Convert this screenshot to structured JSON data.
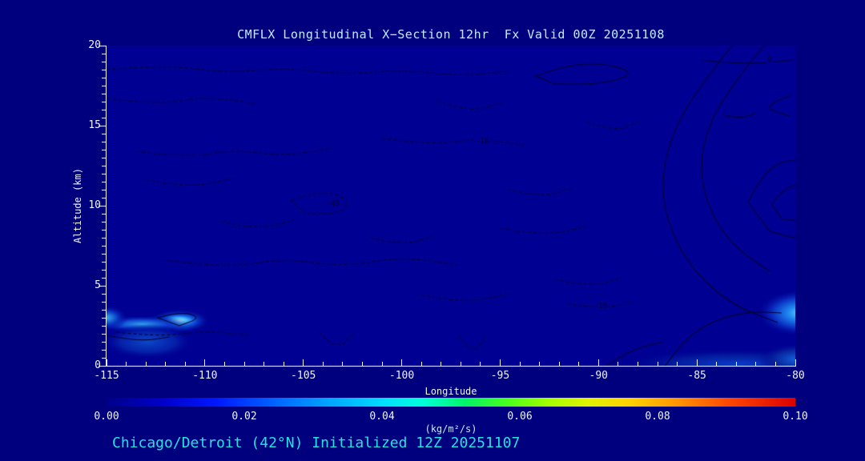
{
  "page": {
    "title": "CMFLX Longitudinal X−Section 12hr  Fx Valid 00Z 20251108",
    "footer": "Chicago/Detroit (42°N) Initialized 12Z 20251107"
  },
  "colors": {
    "page_bg": "#00007e",
    "plot_bg": "#000092",
    "axis": "#f2f6ff",
    "title_text": "#bdeeff",
    "tick_text": "#eef4ff",
    "footer_text": "#25e2e2",
    "contour": "#000033"
  },
  "chart_data": {
    "type": "heatmap",
    "title": "CMFLX Longitudinal X−Section 12hr  Fx Valid 00Z 20251108",
    "xlabel": "Longitude",
    "ylabel": "Altitude (km)",
    "units_label": "(kg/m²/s)",
    "xlim": [
      -115,
      -80
    ],
    "ylim": [
      0,
      20
    ],
    "x_minor_step": 1,
    "y_minor_step": 0.5,
    "x_ticks": [
      {
        "v": -115,
        "label": "-115"
      },
      {
        "v": -110,
        "label": "-110"
      },
      {
        "v": -105,
        "label": "-105"
      },
      {
        "v": -100,
        "label": "-100"
      },
      {
        "v": -95,
        "label": "-95"
      },
      {
        "v": -90,
        "label": "-90"
      },
      {
        "v": -85,
        "label": "-85"
      },
      {
        "v": -80,
        "label": "-80"
      }
    ],
    "y_ticks": [
      {
        "v": 0,
        "label": "0"
      },
      {
        "v": 5,
        "label": "5"
      },
      {
        "v": 10,
        "label": "10"
      },
      {
        "v": 15,
        "label": "15"
      },
      {
        "v": 20,
        "label": "20"
      }
    ],
    "colorbar": {
      "min": 0,
      "max": 0.1,
      "ticks": [
        {
          "v": 0.0,
          "label": "0.00"
        },
        {
          "v": 0.02,
          "label": "0.02"
        },
        {
          "v": 0.04,
          "label": "0.04"
        },
        {
          "v": 0.06,
          "label": "0.06"
        },
        {
          "v": 0.08,
          "label": "0.08"
        },
        {
          "v": 0.1,
          "label": "0.10"
        }
      ],
      "stops": [
        {
          "p": 0.0,
          "c": "#00008b"
        },
        {
          "p": 0.08,
          "c": "#0000c8"
        },
        {
          "p": 0.16,
          "c": "#0018ff"
        },
        {
          "p": 0.24,
          "c": "#0060ff"
        },
        {
          "p": 0.32,
          "c": "#00a4ff"
        },
        {
          "p": 0.4,
          "c": "#00ddff"
        },
        {
          "p": 0.46,
          "c": "#00ffd8"
        },
        {
          "p": 0.52,
          "c": "#00f468"
        },
        {
          "p": 0.58,
          "c": "#46ff1e"
        },
        {
          "p": 0.64,
          "c": "#a2ff00"
        },
        {
          "p": 0.7,
          "c": "#e2f200"
        },
        {
          "p": 0.76,
          "c": "#ffd200"
        },
        {
          "p": 0.83,
          "c": "#ff9400"
        },
        {
          "p": 0.9,
          "c": "#ff4a00"
        },
        {
          "p": 1.0,
          "c": "#de0000"
        }
      ]
    },
    "plumes": [
      {
        "x": -111.3,
        "y": 2.8,
        "rx": 1.6,
        "ry": 0.75,
        "stops": [
          [
            0,
            "#d8fbff"
          ],
          [
            0.18,
            "#5fdcff"
          ],
          [
            0.45,
            "#1160e8"
          ],
          [
            1,
            "rgba(0,0,146,0)"
          ]
        ]
      },
      {
        "x": -113.2,
        "y": 2.6,
        "rx": 2.6,
        "ry": 0.55,
        "stops": [
          [
            0,
            "#2f9fe8"
          ],
          [
            0.5,
            "#0c3ed0"
          ],
          [
            1,
            "rgba(0,0,146,0)"
          ]
        ]
      },
      {
        "x": -115.0,
        "y": 3.0,
        "rx": 1.1,
        "ry": 0.8,
        "stops": [
          [
            0,
            "#37b4ec"
          ],
          [
            0.5,
            "#0a3cc8"
          ],
          [
            1,
            "rgba(0,0,146,0)"
          ]
        ]
      },
      {
        "x": -112.9,
        "y": 1.5,
        "rx": 2.4,
        "ry": 1.1,
        "stops": [
          [
            0,
            "#0d47c8"
          ],
          [
            0.6,
            "#051fa8"
          ],
          [
            1,
            "rgba(0,0,146,0)"
          ]
        ]
      },
      {
        "x": -79.7,
        "y": 3.3,
        "rx": 2.3,
        "ry": 1.5,
        "stops": [
          [
            0,
            "#63d9ff"
          ],
          [
            0.3,
            "#1e86f0"
          ],
          [
            0.65,
            "#0a2cc0"
          ],
          [
            1,
            "rgba(0,0,146,0)"
          ]
        ]
      },
      {
        "x": -83.0,
        "y": 0.1,
        "rx": 6.0,
        "ry": 1.0,
        "stops": [
          [
            0,
            "#0b3cc8"
          ],
          [
            0.55,
            "#041b9e"
          ],
          [
            1,
            "rgba(0,0,146,0)"
          ]
        ]
      },
      {
        "x": -79.9,
        "y": 0.4,
        "rx": 2.0,
        "ry": 1.0,
        "stops": [
          [
            0,
            "#1464dc"
          ],
          [
            0.6,
            "#07239e"
          ],
          [
            1,
            "rgba(0,0,146,0)"
          ]
        ]
      }
    ],
    "contours": [
      {
        "dashed": true,
        "closed": false,
        "pts": [
          [
            -115,
            18.5
          ],
          [
            -112,
            18.8
          ],
          [
            -109,
            18.3
          ],
          [
            -106,
            18.6
          ],
          [
            -103,
            18.2
          ],
          [
            -100,
            18.5
          ],
          [
            -97,
            18.1
          ],
          [
            -94.5,
            18.4
          ]
        ]
      },
      {
        "dashed": true,
        "closed": false,
        "pts": [
          [
            -115,
            16.7
          ],
          [
            -112.5,
            16.3
          ],
          [
            -110,
            16.8
          ],
          [
            -107.5,
            16.4
          ]
        ]
      },
      {
        "dashed": true,
        "closed": false,
        "pts": [
          [
            -113.5,
            13.4
          ],
          [
            -111,
            13.0
          ],
          [
            -108.5,
            13.5
          ],
          [
            -106,
            13.1
          ],
          [
            -103.5,
            13.6
          ]
        ]
      },
      {
        "dashed": true,
        "closed": false,
        "pts": [
          [
            -101,
            14.2
          ],
          [
            -98.5,
            13.8
          ],
          [
            -96.2,
            14.2
          ],
          [
            -93.8,
            13.8
          ]
        ]
      },
      {
        "dashed": true,
        "closed": true,
        "pts": [
          [
            -105.6,
            10.3
          ],
          [
            -104.2,
            11.0
          ],
          [
            -102.6,
            10.4
          ],
          [
            -103.1,
            9.5
          ],
          [
            -104.9,
            9.5
          ]
        ]
      },
      {
        "dashed": true,
        "closed": false,
        "pts": [
          [
            -113,
            11.6
          ],
          [
            -110.8,
            11.1
          ],
          [
            -108.6,
            11.7
          ]
        ]
      },
      {
        "dashed": true,
        "closed": false,
        "pts": [
          [
            -112,
            6.6
          ],
          [
            -109,
            6.1
          ],
          [
            -106,
            6.7
          ],
          [
            -103,
            6.2
          ],
          [
            -100,
            6.8
          ],
          [
            -97.2,
            6.3
          ]
        ]
      },
      {
        "dashed": true,
        "closed": false,
        "pts": [
          [
            -95,
            8.6
          ],
          [
            -92.8,
            8.1
          ],
          [
            -90.6,
            8.7
          ]
        ]
      },
      {
        "dashed": true,
        "closed": false,
        "pts": [
          [
            -99,
            4.4
          ],
          [
            -96.8,
            3.9
          ],
          [
            -94.6,
            4.5
          ]
        ]
      },
      {
        "dashed": true,
        "closed": false,
        "pts": [
          [
            -114.5,
            2.1
          ],
          [
            -112.3,
            1.8
          ],
          [
            -110,
            2.2
          ],
          [
            -107.8,
            1.9
          ]
        ]
      },
      {
        "dashed": true,
        "closed": false,
        "pts": [
          [
            -104.2,
            2.1
          ],
          [
            -103.3,
            0.9
          ],
          [
            -102.4,
            2.1
          ]
        ]
      },
      {
        "dashed": true,
        "closed": false,
        "pts": [
          [
            -97.1,
            1.9
          ],
          [
            -96.4,
            0.6
          ],
          [
            -95.7,
            1.9
          ]
        ]
      },
      {
        "dashed": true,
        "closed": false,
        "pts": [
          [
            -92.2,
            5.4
          ],
          [
            -90.4,
            4.9
          ],
          [
            -88.8,
            5.5
          ]
        ]
      },
      {
        "dashed": true,
        "closed": false,
        "pts": [
          [
            -91.6,
            3.9
          ],
          [
            -89.9,
            3.5
          ],
          [
            -88.3,
            4.0
          ]
        ]
      },
      {
        "dashed": true,
        "closed": false,
        "pts": [
          [
            -98.2,
            16.5
          ],
          [
            -96.4,
            15.8
          ],
          [
            -94.8,
            16.5
          ]
        ]
      },
      {
        "dashed": true,
        "closed": false,
        "pts": [
          [
            -90.6,
            15.2
          ],
          [
            -89.1,
            14.6
          ],
          [
            -87.9,
            15.3
          ]
        ]
      },
      {
        "dashed": true,
        "closed": false,
        "pts": [
          [
            -109.2,
            9.0
          ],
          [
            -107.3,
            8.5
          ],
          [
            -105.5,
            9.1
          ]
        ]
      },
      {
        "dashed": true,
        "closed": false,
        "pts": [
          [
            -94.6,
            11.0
          ],
          [
            -92.9,
            10.5
          ],
          [
            -91.4,
            11.1
          ]
        ]
      },
      {
        "dashed": true,
        "closed": false,
        "pts": [
          [
            -101.6,
            8.0
          ],
          [
            -99.9,
            7.5
          ],
          [
            -98.4,
            8.1
          ]
        ]
      },
      {
        "dashed": false,
        "closed": true,
        "pts": [
          [
            -93.2,
            18.1
          ],
          [
            -91.4,
            18.9
          ],
          [
            -89.2,
            18.8
          ],
          [
            -88.2,
            18.2
          ],
          [
            -89.8,
            17.6
          ],
          [
            -92.2,
            17.6
          ]
        ]
      },
      {
        "dashed": false,
        "closed": false,
        "pts": [
          [
            -84.8,
            19.1
          ],
          [
            -82.5,
            18.8
          ],
          [
            -80.1,
            19.1
          ]
        ]
      },
      {
        "dashed": false,
        "closed": false,
        "pts": [
          [
            -83.2,
            20
          ],
          [
            -85.2,
            17
          ],
          [
            -86.6,
            13.5
          ],
          [
            -86.8,
            10
          ],
          [
            -85.6,
            6.5
          ],
          [
            -83.4,
            3.9
          ],
          [
            -80.9,
            2.7
          ]
        ]
      },
      {
        "dashed": false,
        "closed": false,
        "pts": [
          [
            -81.6,
            20
          ],
          [
            -83.6,
            17
          ],
          [
            -84.8,
            13.8
          ],
          [
            -84.7,
            10.6
          ],
          [
            -83.4,
            7.7
          ],
          [
            -81.3,
            5.9
          ]
        ]
      },
      {
        "dashed": false,
        "closed": true,
        "pts": [
          [
            -82.4,
            10.2
          ],
          [
            -81.6,
            12.2
          ],
          [
            -80.1,
            13.0
          ],
          [
            -79.0,
            12.3
          ],
          [
            -78.7,
            9.2
          ],
          [
            -79.5,
            7.8
          ],
          [
            -81.3,
            8.4
          ]
        ]
      },
      {
        "dashed": false,
        "closed": true,
        "pts": [
          [
            -81.2,
            10.1
          ],
          [
            -80.5,
            11.2
          ],
          [
            -79.5,
            11.4
          ],
          [
            -79.0,
            10.2
          ],
          [
            -79.6,
            9.0
          ],
          [
            -80.7,
            9.2
          ]
        ]
      },
      {
        "dashed": false,
        "closed": false,
        "pts": [
          [
            -83.7,
            15.7
          ],
          [
            -82.8,
            15.4
          ],
          [
            -82.0,
            15.8
          ]
        ]
      },
      {
        "dashed": false,
        "closed": false,
        "pts": [
          [
            -80.2,
            16.9
          ],
          [
            -81.8,
            16.2
          ],
          [
            -80.3,
            15.6
          ]
        ]
      },
      {
        "dashed": false,
        "closed": false,
        "pts": [
          [
            -86.6,
            0
          ],
          [
            -85.7,
            1.6
          ],
          [
            -84.2,
            2.8
          ],
          [
            -82.4,
            3.4
          ],
          [
            -80.7,
            3.3
          ]
        ]
      },
      {
        "dashed": false,
        "closed": false,
        "pts": [
          [
            -89.6,
            0
          ],
          [
            -88.4,
            1.0
          ],
          [
            -86.7,
            1.5
          ]
        ]
      },
      {
        "dashed": false,
        "closed": false,
        "pts": [
          [
            -115,
            1.9
          ],
          [
            -113.4,
            1.5
          ],
          [
            -111.8,
            1.8
          ]
        ]
      },
      {
        "dashed": false,
        "closed": true,
        "pts": [
          [
            -112.4,
            3.0
          ],
          [
            -111.2,
            3.4
          ],
          [
            -110.2,
            3.0
          ],
          [
            -111.3,
            2.5
          ]
        ]
      }
    ],
    "contour_labels": [
      {
        "text": "-10",
        "x": -95.9,
        "y": 14.0
      },
      {
        "text": "-40",
        "x": -103.5,
        "y": 10.1
      },
      {
        "text": "-10",
        "x": -89.9,
        "y": 3.7
      },
      {
        "text": "0",
        "x": -81.3,
        "y": 19.1
      }
    ]
  }
}
